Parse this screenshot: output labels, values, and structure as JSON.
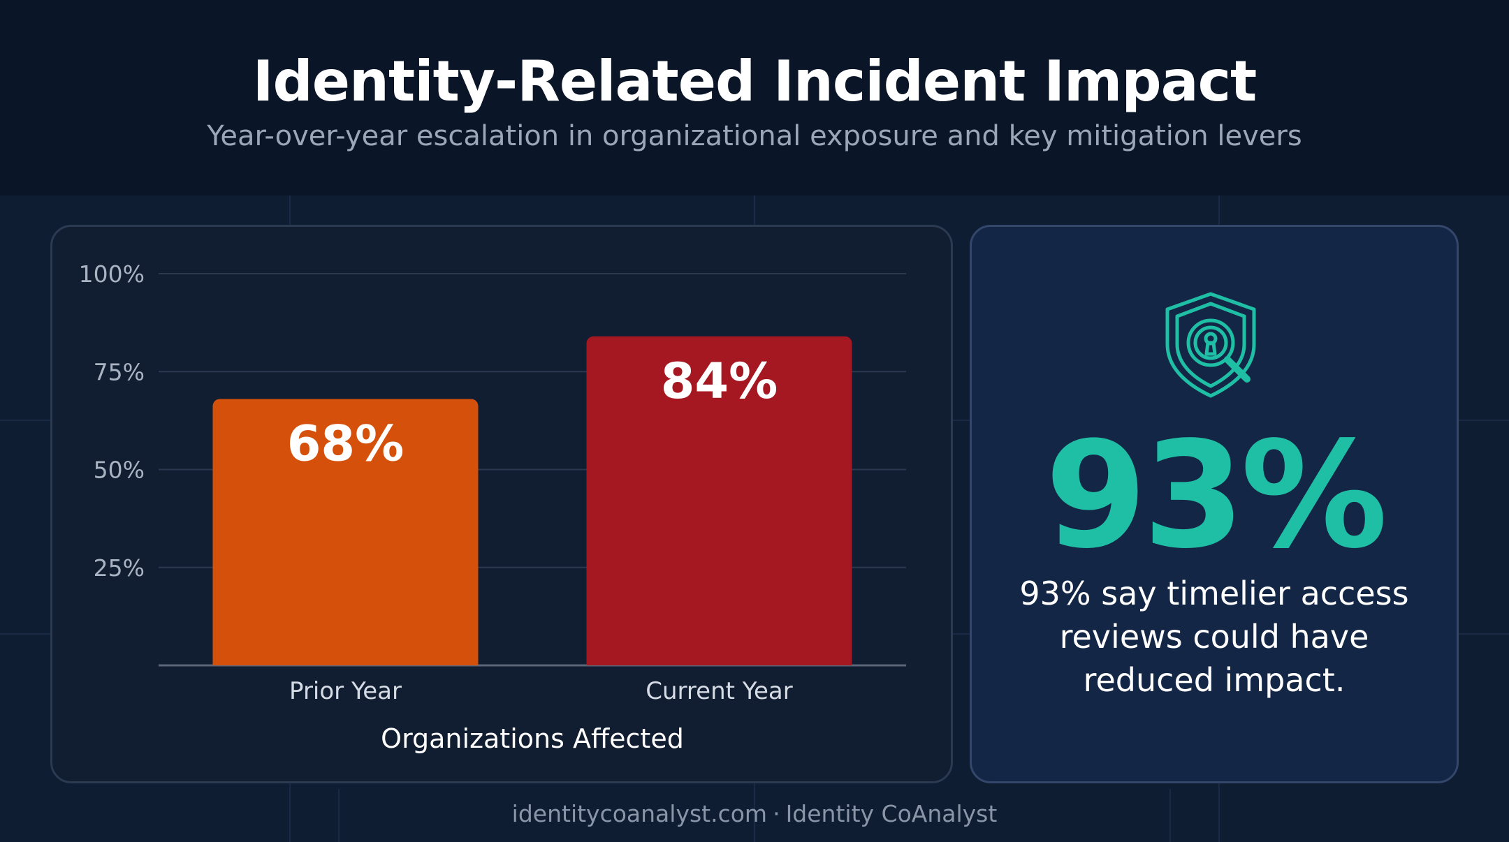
{
  "header": {
    "title": "Identity-Related Incident Impact",
    "subtitle": "Year-over-year escalation in organizational exposure and key mitigation levers"
  },
  "chart_data": {
    "type": "bar",
    "categories": [
      "Prior Year",
      "Current Year"
    ],
    "values": [
      68,
      84
    ],
    "value_labels": [
      "68%",
      "84%"
    ],
    "colors": [
      "#d5500a",
      "#a51822"
    ],
    "xlabel": "Organizations Affected",
    "ylabel": "",
    "ylim": [
      0,
      100
    ],
    "yticks": [
      25,
      50,
      75,
      100
    ],
    "ytick_labels": [
      "25%",
      "50%",
      "75%",
      "100%"
    ],
    "grid": true,
    "legend": "none"
  },
  "stat_panel": {
    "icon": "shield-search-icon",
    "value": "93%",
    "caption": "93% say timelier access reviews could have reduced impact.",
    "accent_color": "#1fbfa6"
  },
  "footer": {
    "site": "identitycoanalyst.com",
    "separator": "·",
    "brand": "Identity CoAnalyst"
  }
}
